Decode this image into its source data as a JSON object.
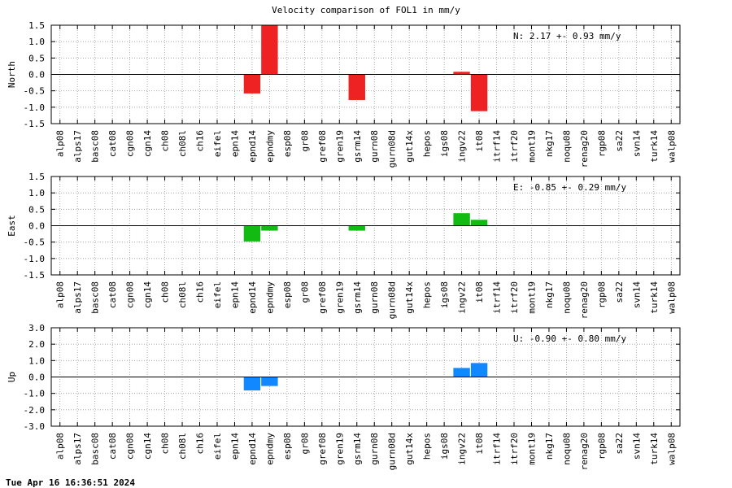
{
  "title": "Velocity comparison of FOL1 in mm/y",
  "timestamp": "Tue Apr 16 16:36:51 2024",
  "chart_data": [
    {
      "type": "bar",
      "ylabel": "North",
      "ylim": [
        -1.5,
        1.5
      ],
      "yticks": [
        "1.5",
        "1.0",
        "0.5",
        "0.0",
        "-0.5",
        "-1.0",
        "-1.5"
      ],
      "annotation": "N:   2.17 +-  0.93 mm/y",
      "color": "#ee2222",
      "grid": true,
      "categories": [
        "alp08",
        "alps17",
        "basc08",
        "cat08",
        "cgn08",
        "cgn14",
        "ch08",
        "ch08l",
        "ch16",
        "eifel",
        "epn14",
        "epnd14",
        "epndmy",
        "esp08",
        "gr08",
        "gref08",
        "gren19",
        "gsrm14",
        "gurn08",
        "gurn08d",
        "gut14x",
        "hepos",
        "igs08",
        "ingv22",
        "it08",
        "itrf14",
        "itrf20",
        "mont19",
        "nkg17",
        "noqu08",
        "renag20",
        "rgp08",
        "sa22",
        "svn14",
        "turk14",
        "walp08"
      ],
      "values": [
        null,
        null,
        null,
        null,
        null,
        null,
        null,
        null,
        null,
        null,
        null,
        -0.58,
        1.5,
        null,
        null,
        null,
        null,
        -0.78,
        null,
        null,
        null,
        null,
        null,
        0.08,
        -1.12,
        null,
        null,
        null,
        null,
        null,
        null,
        null,
        null,
        null,
        null,
        null
      ]
    },
    {
      "type": "bar",
      "ylabel": "East",
      "ylim": [
        -1.5,
        1.5
      ],
      "yticks": [
        "1.5",
        "1.0",
        "0.5",
        "0.0",
        "-0.5",
        "-1.0",
        "-1.5"
      ],
      "annotation": "E:  -0.85 +-  0.29 mm/y",
      "color": "#11bb11",
      "grid": true,
      "categories": [
        "alp08",
        "alps17",
        "basc08",
        "cat08",
        "cgn08",
        "cgn14",
        "ch08",
        "ch08l",
        "ch16",
        "eifel",
        "epn14",
        "epnd14",
        "epndmy",
        "esp08",
        "gr08",
        "gref08",
        "gren19",
        "gsrm14",
        "gurn08",
        "gurn08d",
        "gut14x",
        "hepos",
        "igs08",
        "ingv22",
        "it08",
        "itrf14",
        "itrf20",
        "mont19",
        "nkg17",
        "noqu08",
        "renag20",
        "rgp08",
        "sa22",
        "svn14",
        "turk14",
        "walp08"
      ],
      "values": [
        null,
        null,
        null,
        null,
        null,
        null,
        null,
        null,
        null,
        null,
        null,
        -0.48,
        -0.15,
        null,
        null,
        null,
        null,
        -0.15,
        null,
        null,
        null,
        null,
        null,
        0.38,
        0.18,
        null,
        null,
        null,
        null,
        null,
        null,
        null,
        null,
        null,
        null,
        null
      ]
    },
    {
      "type": "bar",
      "ylabel": "Up",
      "ylim": [
        -3.0,
        3.0
      ],
      "yticks": [
        "3.0",
        "2.0",
        "1.0",
        "0.0",
        "-1.0",
        "-2.0",
        "-3.0"
      ],
      "annotation": "U:  -0.90 +-  0.80 mm/y",
      "color": "#1188ff",
      "grid": true,
      "categories": [
        "alp08",
        "alps17",
        "basc08",
        "cat08",
        "cgn08",
        "cgn14",
        "ch08",
        "ch08l",
        "ch16",
        "eifel",
        "epn14",
        "epnd14",
        "epndmy",
        "esp08",
        "gr08",
        "gref08",
        "gren19",
        "gsrm14",
        "gurn08",
        "gurn08d",
        "gut14x",
        "hepos",
        "igs08",
        "ingv22",
        "it08",
        "itrf14",
        "itrf20",
        "mont19",
        "nkg17",
        "noqu08",
        "renag20",
        "rgp08",
        "sa22",
        "svn14",
        "turk14",
        "walp08"
      ],
      "values": [
        null,
        null,
        null,
        null,
        null,
        null,
        null,
        null,
        null,
        null,
        null,
        -0.82,
        -0.55,
        null,
        null,
        null,
        null,
        null,
        null,
        null,
        null,
        null,
        null,
        0.55,
        0.85,
        null,
        null,
        null,
        null,
        null,
        null,
        null,
        null,
        null,
        null,
        null
      ]
    }
  ]
}
